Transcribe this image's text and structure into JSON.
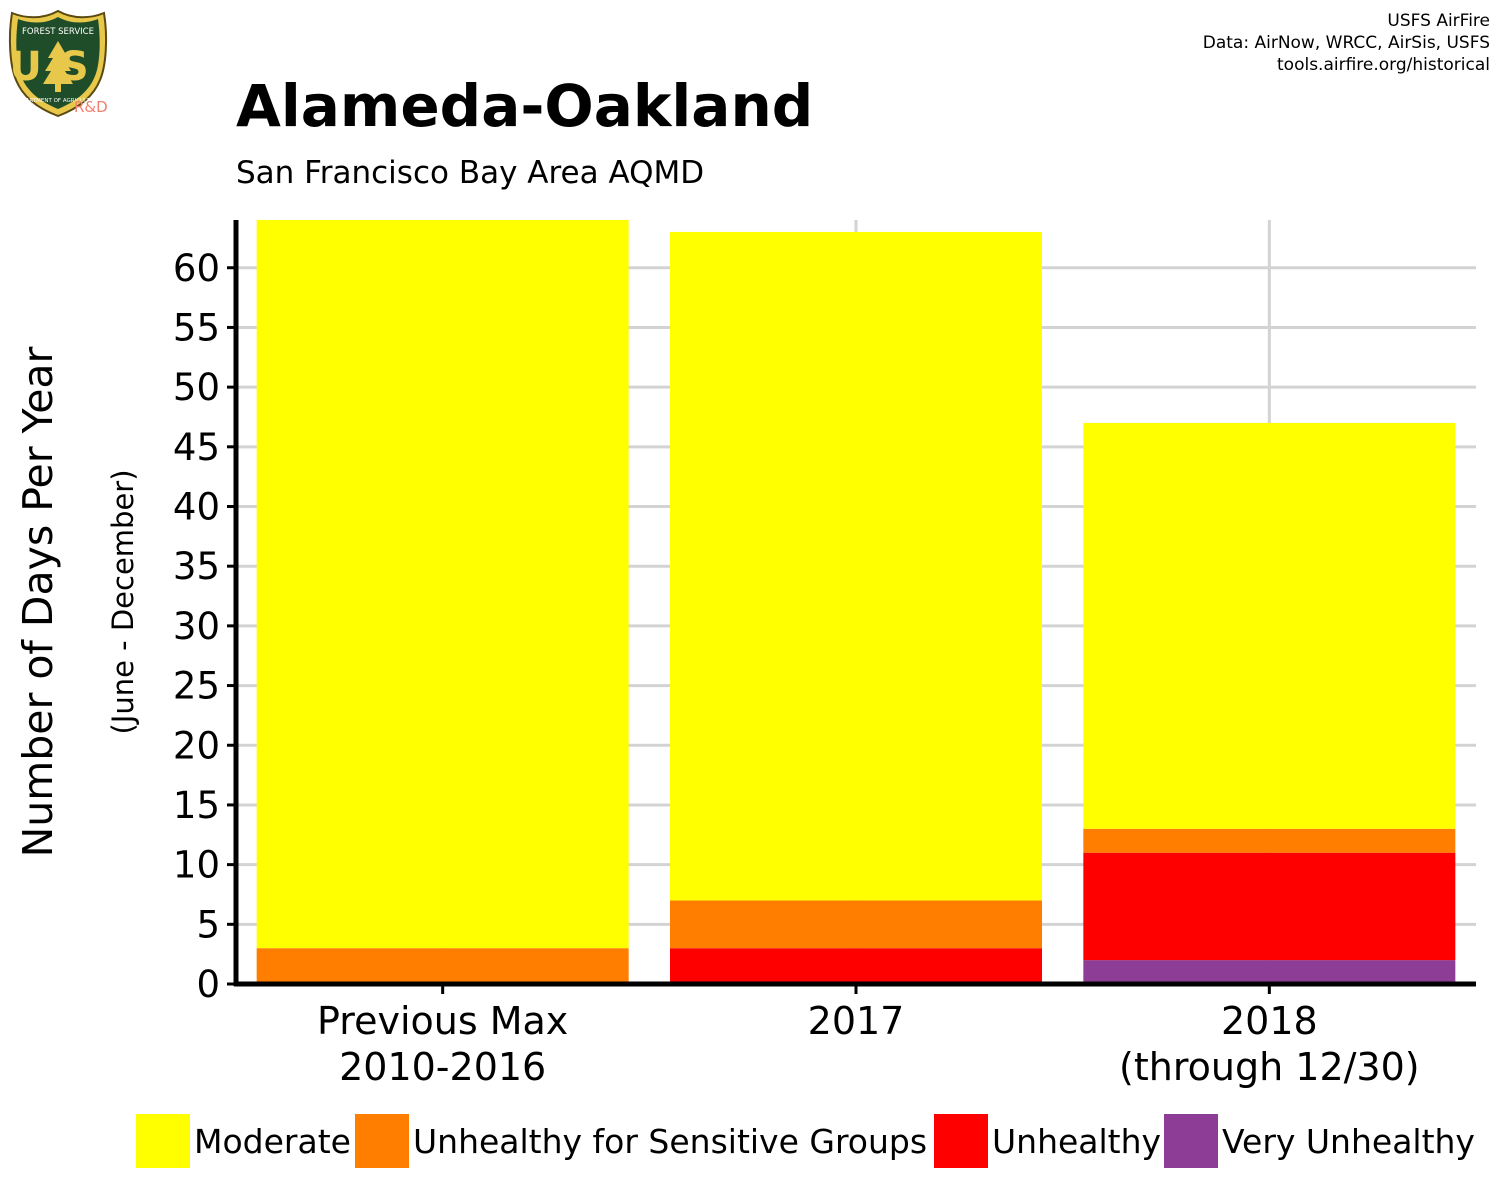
{
  "logo": {
    "icon": "usfs-shield-icon",
    "text_top": "FOREST SERVICE",
    "text_main": "US",
    "text_bottom": "DEPARTMENT OF AGRICULTURE",
    "badge": "R&D"
  },
  "credits": [
    "USFS AirFire",
    "Data: AirNow, WRCC, AirSis, USFS",
    "tools.airfire.org/historical"
  ],
  "title": "Alameda-Oakland",
  "subtitle": "San Francisco Bay Area AQMD",
  "chart_data": {
    "type": "bar",
    "stacked": true,
    "categories": [
      [
        "Previous Max",
        "2010-2016"
      ],
      [
        "2017"
      ],
      [
        "2018",
        "(through 12/30)"
      ]
    ],
    "series": [
      {
        "name": "Very Unhealthy",
        "color": "#8e3d97",
        "values": [
          0,
          0,
          2
        ]
      },
      {
        "name": "Unhealthy",
        "color": "#ff0000",
        "values": [
          0,
          3,
          9
        ]
      },
      {
        "name": "Unhealthy for Sensitive Groups",
        "color": "#ff7e00",
        "values": [
          3,
          4,
          2
        ]
      },
      {
        "name": "Moderate",
        "color": "#ffff00",
        "values": [
          61,
          56,
          34
        ]
      }
    ],
    "ylabel": "Number of Days Per Year",
    "ylabel_sub": "(June - December)",
    "ylim": [
      0,
      64
    ],
    "yticks": [
      0,
      5,
      10,
      15,
      20,
      25,
      30,
      35,
      40,
      45,
      50,
      55,
      60
    ],
    "grid": true,
    "legend_position": "bottom",
    "legend_order": [
      "Moderate",
      "Unhealthy for Sensitive Groups",
      "Unhealthy",
      "Very Unhealthy"
    ]
  }
}
